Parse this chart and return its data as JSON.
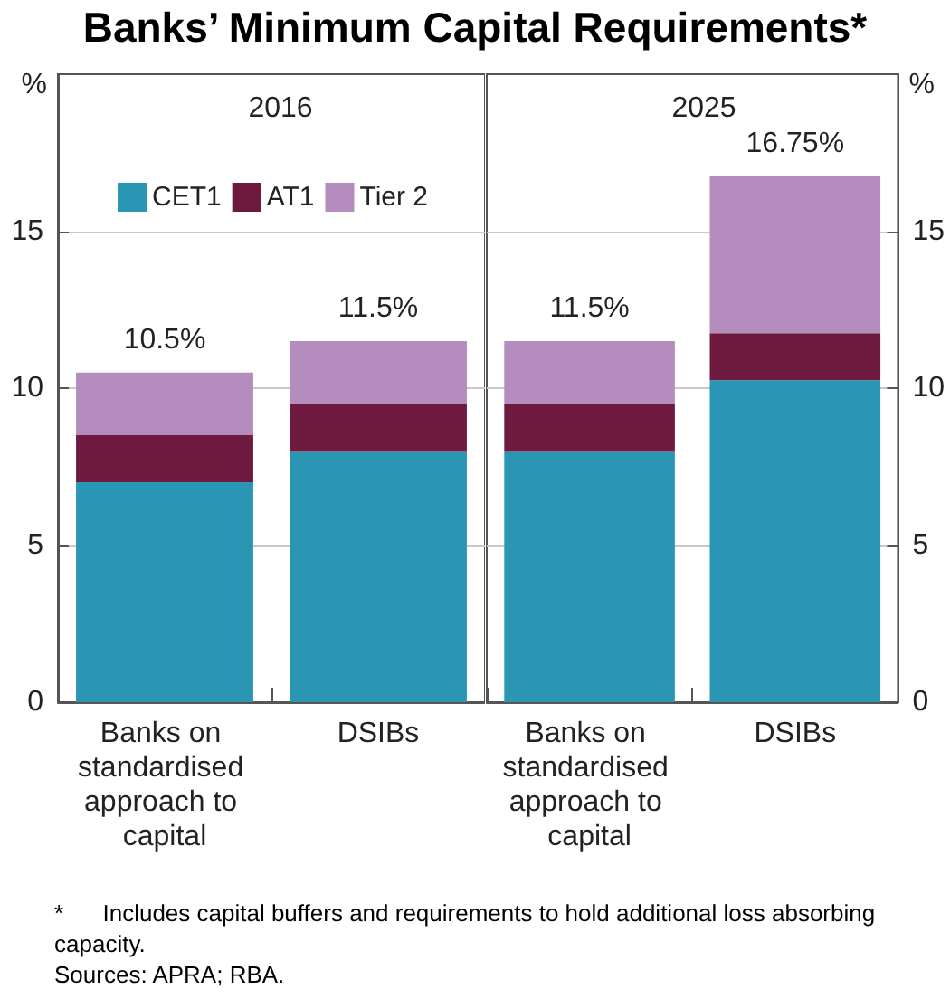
{
  "chart_data": [
    {
      "type": "bar",
      "title": "Banks’ Minimum Capital Requirements*",
      "subtitle": "2016",
      "ylabel": "%",
      "categories": [
        "Banks on standardised approach to capital",
        "DSIBs"
      ],
      "stacked": true,
      "series": [
        {
          "name": "CET1",
          "color": "#2a96b4",
          "values": [
            7,
            8
          ]
        },
        {
          "name": "AT1",
          "color": "#6d1a3e",
          "values": [
            1.5,
            1.5
          ]
        },
        {
          "name": "Tier 2",
          "color": "#b48cbd",
          "values": [
            2,
            2
          ]
        }
      ],
      "totals": [
        "10.5%",
        "11.5%"
      ],
      "ylim": [
        0,
        20
      ],
      "yticks": [
        0,
        5,
        10,
        15
      ],
      "grid": "y",
      "legend": "top left"
    },
    {
      "type": "bar",
      "subtitle": "2025",
      "y2label": "%",
      "categories": [
        "Banks on standardised approach to capital",
        "DSIBs"
      ],
      "stacked": true,
      "series": [
        {
          "color": "#2a96b4",
          "values": [
            8,
            10.25
          ],
          "axis": "y2"
        },
        {
          "color": "#6d1a3e",
          "values": [
            1.5,
            1.5
          ],
          "axis": "y2"
        },
        {
          "color": "#b48cbd",
          "values": [
            2,
            5
          ],
          "axis": "y2"
        }
      ],
      "totals": [
        "11.5%",
        "16.75%"
      ],
      "y2lim": [
        0,
        20
      ],
      "y2ticks": [
        0,
        5,
        10,
        15
      ],
      "grid": "y",
      "annotations": [
        "*      Includes capital buffers and requirements to hold additional loss absorbing capacity.",
        "Sources: APRA; RBA."
      ]
    }
  ]
}
